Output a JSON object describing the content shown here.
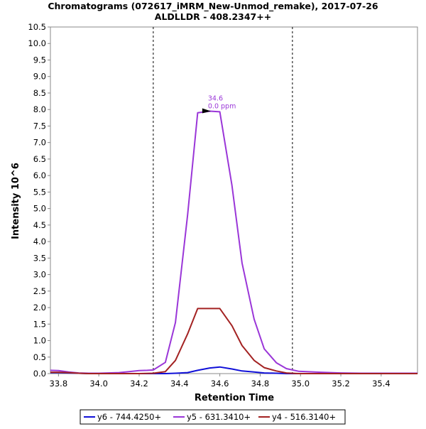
{
  "chart_data": {
    "type": "line",
    "title": "Chromatograms (072617_iMRM_New-Unmod_remake), 2017-07-26",
    "subtitle": "ALDLLDR - 408.2347++",
    "xlabel": "Retention Time",
    "ylabel": "Intensity 10^6",
    "xlim": [
      33.76,
      35.58
    ],
    "ylim": [
      0,
      10.5
    ],
    "x_ticks": [
      "33.8",
      "34.0",
      "34.2",
      "34.4",
      "34.6",
      "34.8",
      "35.0",
      "35.2",
      "35.4"
    ],
    "y_ticks": [
      "0.0",
      "0.5",
      "1.0",
      "1.5",
      "2.0",
      "2.5",
      "3.0",
      "3.5",
      "4.0",
      "4.5",
      "5.0",
      "5.5",
      "6.0",
      "6.5",
      "7.0",
      "7.5",
      "8.0",
      "8.5",
      "9.0",
      "9.5",
      "10.0",
      "10.5"
    ],
    "integration_bounds": [
      34.27,
      34.96
    ],
    "grid": false,
    "legend_position": "bottom",
    "series": [
      {
        "name": "y6 - 744.4250+",
        "color": "#1010d8",
        "x": [
          33.76,
          33.8,
          33.85,
          33.9,
          33.95,
          34.0,
          34.1,
          34.2,
          34.27,
          34.33,
          34.38,
          34.44,
          34.49,
          34.55,
          34.6,
          34.66,
          34.71,
          34.77,
          34.82,
          34.88,
          34.93,
          34.99,
          35.1,
          35.2,
          35.3,
          35.4,
          35.58
        ],
        "y": [
          0.03,
          0.03,
          0.02,
          0.01,
          0.0,
          0.0,
          0.0,
          0.0,
          0.0,
          0.0,
          0.01,
          0.03,
          0.1,
          0.17,
          0.2,
          0.14,
          0.08,
          0.05,
          0.02,
          0.01,
          0.0,
          0.0,
          0.0,
          0.0,
          0.0,
          0.0,
          0.0
        ]
      },
      {
        "name": "y5 - 631.3410+",
        "color": "#9a36d8",
        "x": [
          33.76,
          33.8,
          33.85,
          33.9,
          33.95,
          34.0,
          34.1,
          34.15,
          34.2,
          34.24,
          34.27,
          34.33,
          34.38,
          34.44,
          34.49,
          34.53,
          34.55,
          34.6,
          34.66,
          34.71,
          34.77,
          34.82,
          34.88,
          34.93,
          34.99,
          35.1,
          35.2,
          35.3,
          35.4,
          35.58
        ],
        "y": [
          0.1,
          0.09,
          0.05,
          0.02,
          0.01,
          0.01,
          0.03,
          0.06,
          0.09,
          0.1,
          0.11,
          0.34,
          1.55,
          4.8,
          7.9,
          7.93,
          7.95,
          7.93,
          5.7,
          3.35,
          1.65,
          0.75,
          0.33,
          0.15,
          0.07,
          0.04,
          0.02,
          0.01,
          0.01,
          0.01
        ]
      },
      {
        "name": "y4 - 516.3140+",
        "color": "#a32222",
        "x": [
          33.76,
          33.8,
          33.85,
          33.9,
          33.95,
          34.0,
          34.1,
          34.2,
          34.27,
          34.33,
          34.38,
          34.44,
          34.49,
          34.55,
          34.6,
          34.66,
          34.71,
          34.77,
          34.82,
          34.88,
          34.93,
          34.99,
          35.1,
          35.2,
          35.3,
          35.4,
          35.58
        ],
        "y": [
          0.04,
          0.04,
          0.03,
          0.01,
          0.0,
          0.0,
          0.0,
          0.0,
          0.01,
          0.06,
          0.4,
          1.2,
          1.97,
          1.97,
          1.97,
          1.45,
          0.85,
          0.4,
          0.18,
          0.08,
          0.02,
          0.0,
          0.0,
          0.0,
          0.0,
          0.0,
          0.0
        ]
      }
    ],
    "annotation": {
      "series": "y5 - 631.3410+",
      "x": 34.52,
      "y": 7.95,
      "line1": "34.6",
      "line2": "0.0 ppm"
    }
  }
}
